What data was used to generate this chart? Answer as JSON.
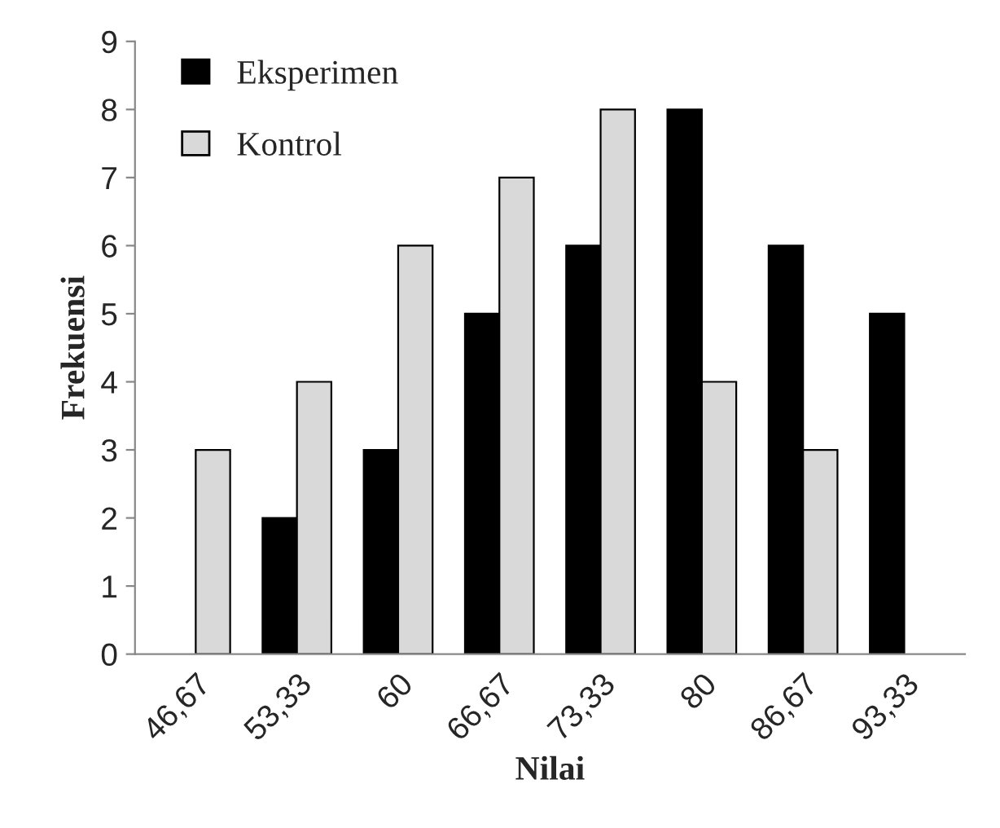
{
  "chart_data": {
    "type": "bar",
    "xlabel": "Nilai",
    "ylabel": "Frekuensi",
    "categories": [
      "46,67",
      "53,33",
      "60",
      "66,67",
      "73,33",
      "80",
      "86,67",
      "93,33"
    ],
    "series": [
      {
        "name": "Eksperimen",
        "color": "#000000",
        "values": [
          0,
          2,
          3,
          5,
          6,
          8,
          6,
          5
        ]
      },
      {
        "name": "Kontrol",
        "color": "#d9d9d9",
        "values": [
          3,
          4,
          6,
          7,
          8,
          4,
          3,
          0
        ]
      }
    ],
    "ylim": [
      0,
      9
    ],
    "yticks": [
      0,
      1,
      2,
      3,
      4,
      5,
      6,
      7,
      8,
      9
    ],
    "grid": false,
    "legend": "top left"
  }
}
